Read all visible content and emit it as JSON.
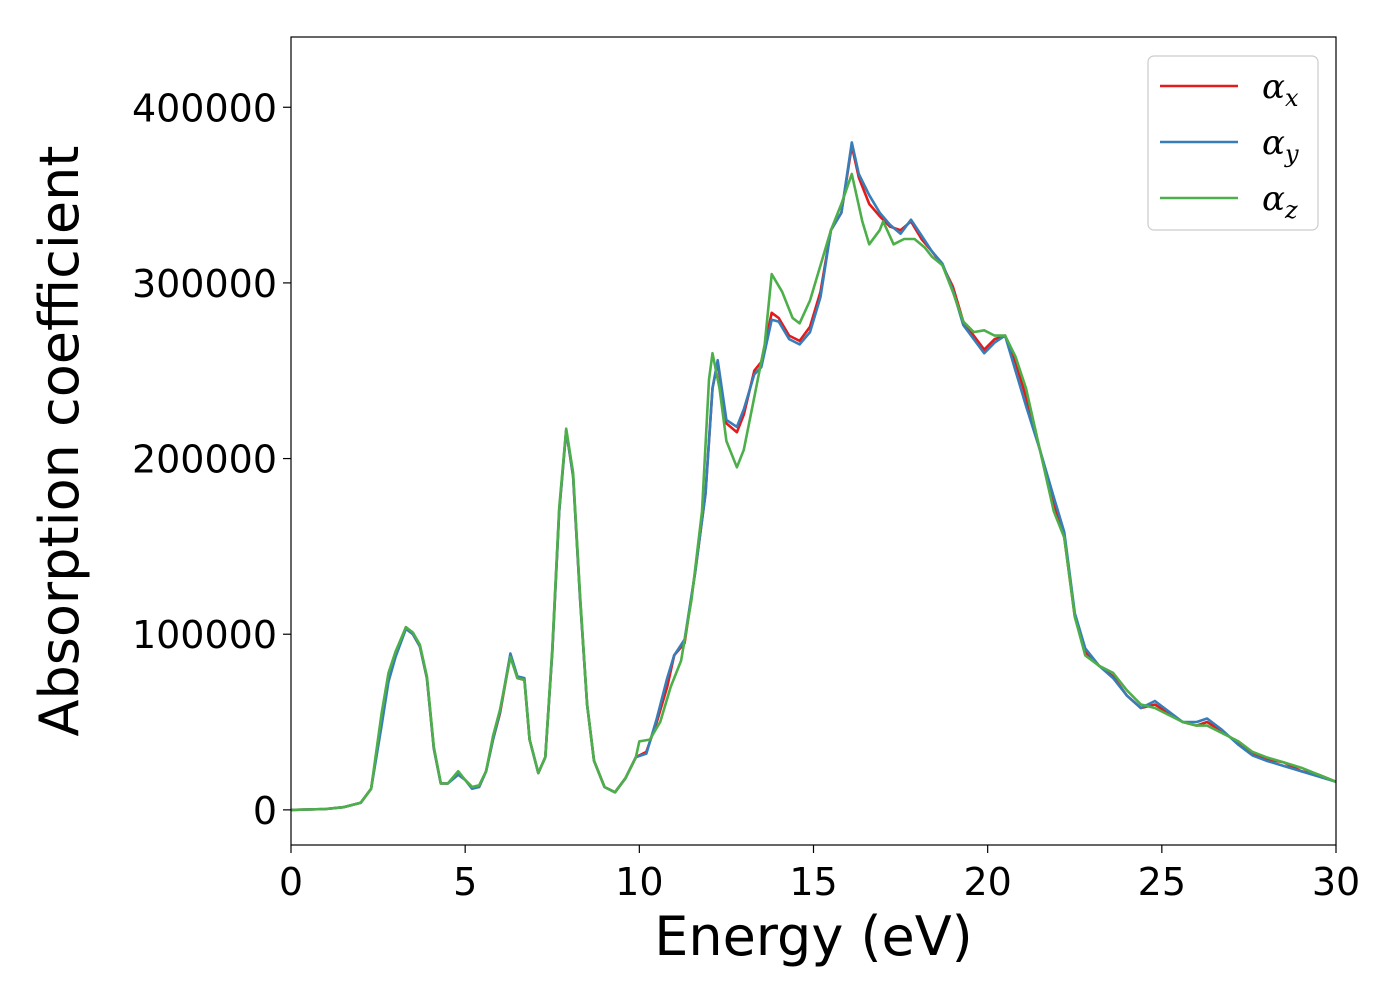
{
  "chart_data": {
    "type": "line",
    "title": "",
    "xlabel": "Energy (eV)",
    "ylabel": "Absorption coefficient",
    "xlim": [
      0,
      30
    ],
    "ylim": [
      -20000,
      440000
    ],
    "x_ticks": [
      0,
      5,
      10,
      15,
      20,
      25,
      30
    ],
    "x_tick_labels": [
      "0",
      "5",
      "10",
      "15",
      "20",
      "25",
      "30"
    ],
    "y_ticks": [
      0,
      100000,
      200000,
      300000,
      400000
    ],
    "y_tick_labels": [
      "0",
      "100000",
      "200000",
      "300000",
      "400000"
    ],
    "grid": false,
    "legend_position": "top-right",
    "series": [
      {
        "name": "α",
        "subscript": "x",
        "color": "#e41a1c",
        "points": [
          [
            0,
            0
          ],
          [
            1,
            500
          ],
          [
            1.5,
            1500
          ],
          [
            2,
            4000
          ],
          [
            2.3,
            12000
          ],
          [
            2.6,
            50000
          ],
          [
            2.8,
            75000
          ],
          [
            3.0,
            88000
          ],
          [
            3.3,
            104000
          ],
          [
            3.5,
            100000
          ],
          [
            3.7,
            93000
          ],
          [
            3.9,
            75000
          ],
          [
            4.1,
            35000
          ],
          [
            4.3,
            15000
          ],
          [
            4.5,
            15000
          ],
          [
            4.8,
            21000
          ],
          [
            5.0,
            17000
          ],
          [
            5.2,
            13000
          ],
          [
            5.4,
            13000
          ],
          [
            5.6,
            22000
          ],
          [
            5.8,
            40000
          ],
          [
            6.0,
            55000
          ],
          [
            6.3,
            88000
          ],
          [
            6.5,
            75000
          ],
          [
            6.7,
            74000
          ],
          [
            6.85,
            40000
          ],
          [
            7.1,
            21000
          ],
          [
            7.3,
            30000
          ],
          [
            7.5,
            90000
          ],
          [
            7.7,
            170000
          ],
          [
            7.9,
            216000
          ],
          [
            8.1,
            190000
          ],
          [
            8.3,
            120000
          ],
          [
            8.5,
            60000
          ],
          [
            8.7,
            28000
          ],
          [
            9.0,
            13000
          ],
          [
            9.3,
            10000
          ],
          [
            9.6,
            18000
          ],
          [
            9.9,
            30000
          ],
          [
            10.2,
            33000
          ],
          [
            10.5,
            50000
          ],
          [
            10.8,
            70000
          ],
          [
            11.0,
            88000
          ],
          [
            11.3,
            95000
          ],
          [
            11.6,
            135000
          ],
          [
            11.9,
            180000
          ],
          [
            12.1,
            240000
          ],
          [
            12.25,
            255000
          ],
          [
            12.5,
            220000
          ],
          [
            12.8,
            215000
          ],
          [
            13.0,
            225000
          ],
          [
            13.3,
            250000
          ],
          [
            13.5,
            255000
          ],
          [
            13.8,
            283000
          ],
          [
            14.0,
            280000
          ],
          [
            14.3,
            270000
          ],
          [
            14.6,
            267000
          ],
          [
            14.9,
            275000
          ],
          [
            15.2,
            295000
          ],
          [
            15.5,
            330000
          ],
          [
            15.8,
            340000
          ],
          [
            16.1,
            378000
          ],
          [
            16.3,
            360000
          ],
          [
            16.6,
            345000
          ],
          [
            16.9,
            338000
          ],
          [
            17.2,
            332000
          ],
          [
            17.5,
            330000
          ],
          [
            17.8,
            335000
          ],
          [
            18.1,
            325000
          ],
          [
            18.4,
            318000
          ],
          [
            18.7,
            310000
          ],
          [
            19.0,
            298000
          ],
          [
            19.3,
            278000
          ],
          [
            19.6,
            270000
          ],
          [
            19.9,
            262000
          ],
          [
            20.2,
            268000
          ],
          [
            20.5,
            270000
          ],
          [
            20.8,
            255000
          ],
          [
            21.1,
            235000
          ],
          [
            21.5,
            205000
          ],
          [
            21.9,
            175000
          ],
          [
            22.2,
            155000
          ],
          [
            22.5,
            110000
          ],
          [
            22.8,
            90000
          ],
          [
            23.2,
            82000
          ],
          [
            23.6,
            76000
          ],
          [
            24.0,
            65000
          ],
          [
            24.4,
            58000
          ],
          [
            24.8,
            60000
          ],
          [
            25.2,
            55000
          ],
          [
            25.6,
            50000
          ],
          [
            26.0,
            48000
          ],
          [
            26.3,
            50000
          ],
          [
            26.7,
            45000
          ],
          [
            27.2,
            38000
          ],
          [
            27.6,
            32000
          ],
          [
            28.0,
            29000
          ],
          [
            28.5,
            27000
          ],
          [
            29.0,
            22000
          ],
          [
            29.5,
            20000
          ],
          [
            30.0,
            16000
          ]
        ]
      },
      {
        "name": "α",
        "subscript": "y",
        "color": "#377eb8",
        "points": [
          [
            0,
            0
          ],
          [
            1,
            500
          ],
          [
            1.5,
            1500
          ],
          [
            2,
            4000
          ],
          [
            2.3,
            12000
          ],
          [
            2.6,
            48000
          ],
          [
            2.8,
            73000
          ],
          [
            3.0,
            87000
          ],
          [
            3.3,
            103000
          ],
          [
            3.5,
            100000
          ],
          [
            3.7,
            93000
          ],
          [
            3.9,
            75000
          ],
          [
            4.1,
            35000
          ],
          [
            4.3,
            15000
          ],
          [
            4.5,
            15000
          ],
          [
            4.8,
            20000
          ],
          [
            5.0,
            17000
          ],
          [
            5.2,
            12000
          ],
          [
            5.4,
            13000
          ],
          [
            5.6,
            22000
          ],
          [
            5.8,
            40000
          ],
          [
            6.0,
            56000
          ],
          [
            6.3,
            89000
          ],
          [
            6.5,
            76000
          ],
          [
            6.7,
            75000
          ],
          [
            6.85,
            40000
          ],
          [
            7.1,
            21000
          ],
          [
            7.3,
            30000
          ],
          [
            7.5,
            90000
          ],
          [
            7.7,
            170000
          ],
          [
            7.9,
            216000
          ],
          [
            8.1,
            190000
          ],
          [
            8.3,
            120000
          ],
          [
            8.5,
            60000
          ],
          [
            8.7,
            28000
          ],
          [
            9.0,
            13000
          ],
          [
            9.3,
            10000
          ],
          [
            9.6,
            18000
          ],
          [
            9.9,
            30000
          ],
          [
            10.2,
            32000
          ],
          [
            10.5,
            52000
          ],
          [
            10.8,
            75000
          ],
          [
            11.0,
            88000
          ],
          [
            11.3,
            97000
          ],
          [
            11.6,
            135000
          ],
          [
            11.9,
            180000
          ],
          [
            12.1,
            240000
          ],
          [
            12.25,
            256000
          ],
          [
            12.5,
            222000
          ],
          [
            12.8,
            218000
          ],
          [
            13.0,
            228000
          ],
          [
            13.3,
            248000
          ],
          [
            13.5,
            252000
          ],
          [
            13.8,
            279000
          ],
          [
            14.0,
            278000
          ],
          [
            14.3,
            268000
          ],
          [
            14.6,
            265000
          ],
          [
            14.9,
            272000
          ],
          [
            15.2,
            292000
          ],
          [
            15.5,
            330000
          ],
          [
            15.8,
            340000
          ],
          [
            16.1,
            380000
          ],
          [
            16.3,
            362000
          ],
          [
            16.6,
            350000
          ],
          [
            16.9,
            340000
          ],
          [
            17.2,
            333000
          ],
          [
            17.5,
            328000
          ],
          [
            17.8,
            336000
          ],
          [
            18.1,
            327000
          ],
          [
            18.4,
            318000
          ],
          [
            18.7,
            311000
          ],
          [
            19.0,
            296000
          ],
          [
            19.3,
            276000
          ],
          [
            19.6,
            268000
          ],
          [
            19.9,
            260000
          ],
          [
            20.2,
            266000
          ],
          [
            20.5,
            270000
          ],
          [
            20.8,
            250000
          ],
          [
            21.1,
            230000
          ],
          [
            21.5,
            205000
          ],
          [
            21.9,
            178000
          ],
          [
            22.2,
            158000
          ],
          [
            22.5,
            112000
          ],
          [
            22.8,
            92000
          ],
          [
            23.2,
            82000
          ],
          [
            23.6,
            75000
          ],
          [
            24.0,
            65000
          ],
          [
            24.4,
            58000
          ],
          [
            24.8,
            62000
          ],
          [
            25.2,
            56000
          ],
          [
            25.6,
            50000
          ],
          [
            26.0,
            50000
          ],
          [
            26.3,
            52000
          ],
          [
            26.7,
            46000
          ],
          [
            27.2,
            37000
          ],
          [
            27.6,
            31000
          ],
          [
            28.0,
            28000
          ],
          [
            28.5,
            25000
          ],
          [
            29.0,
            22000
          ],
          [
            29.5,
            19000
          ],
          [
            30.0,
            16000
          ]
        ]
      },
      {
        "name": "α",
        "subscript": "z",
        "color": "#4daf4a",
        "points": [
          [
            0,
            0
          ],
          [
            1,
            500
          ],
          [
            1.5,
            1500
          ],
          [
            2,
            4000
          ],
          [
            2.3,
            12000
          ],
          [
            2.6,
            55000
          ],
          [
            2.8,
            78000
          ],
          [
            3.0,
            90000
          ],
          [
            3.3,
            104000
          ],
          [
            3.5,
            101000
          ],
          [
            3.7,
            94000
          ],
          [
            3.9,
            76000
          ],
          [
            4.1,
            36000
          ],
          [
            4.3,
            15000
          ],
          [
            4.5,
            15000
          ],
          [
            4.8,
            22000
          ],
          [
            5.0,
            17000
          ],
          [
            5.2,
            13000
          ],
          [
            5.4,
            14000
          ],
          [
            5.6,
            22000
          ],
          [
            5.8,
            42000
          ],
          [
            6.0,
            57000
          ],
          [
            6.3,
            87000
          ],
          [
            6.5,
            75000
          ],
          [
            6.7,
            74000
          ],
          [
            6.85,
            40000
          ],
          [
            7.1,
            21000
          ],
          [
            7.3,
            30000
          ],
          [
            7.5,
            92000
          ],
          [
            7.7,
            172000
          ],
          [
            7.9,
            217000
          ],
          [
            8.1,
            192000
          ],
          [
            8.3,
            122000
          ],
          [
            8.5,
            60000
          ],
          [
            8.7,
            28000
          ],
          [
            9.0,
            13000
          ],
          [
            9.3,
            10000
          ],
          [
            9.6,
            18000
          ],
          [
            9.9,
            30000
          ],
          [
            10.0,
            39000
          ],
          [
            10.3,
            40000
          ],
          [
            10.6,
            50000
          ],
          [
            10.9,
            70000
          ],
          [
            11.2,
            85000
          ],
          [
            11.5,
            120000
          ],
          [
            11.8,
            170000
          ],
          [
            12.0,
            245000
          ],
          [
            12.1,
            260000
          ],
          [
            12.3,
            240000
          ],
          [
            12.5,
            210000
          ],
          [
            12.8,
            195000
          ],
          [
            13.0,
            205000
          ],
          [
            13.3,
            235000
          ],
          [
            13.6,
            265000
          ],
          [
            13.8,
            305000
          ],
          [
            14.1,
            295000
          ],
          [
            14.4,
            280000
          ],
          [
            14.6,
            277000
          ],
          [
            14.9,
            290000
          ],
          [
            15.2,
            310000
          ],
          [
            15.5,
            330000
          ],
          [
            15.8,
            345000
          ],
          [
            16.1,
            362000
          ],
          [
            16.4,
            335000
          ],
          [
            16.6,
            322000
          ],
          [
            16.9,
            330000
          ],
          [
            17.0,
            335000
          ],
          [
            17.3,
            322000
          ],
          [
            17.6,
            325000
          ],
          [
            17.9,
            325000
          ],
          [
            18.2,
            320000
          ],
          [
            18.4,
            315000
          ],
          [
            18.7,
            310000
          ],
          [
            19.0,
            295000
          ],
          [
            19.3,
            278000
          ],
          [
            19.6,
            272000
          ],
          [
            19.9,
            273000
          ],
          [
            20.2,
            270000
          ],
          [
            20.5,
            270000
          ],
          [
            20.8,
            258000
          ],
          [
            21.1,
            240000
          ],
          [
            21.5,
            205000
          ],
          [
            21.9,
            170000
          ],
          [
            22.2,
            155000
          ],
          [
            22.5,
            110000
          ],
          [
            22.8,
            88000
          ],
          [
            23.2,
            82000
          ],
          [
            23.6,
            78000
          ],
          [
            24.0,
            68000
          ],
          [
            24.4,
            60000
          ],
          [
            24.8,
            58000
          ],
          [
            25.2,
            54000
          ],
          [
            25.6,
            50000
          ],
          [
            26.0,
            48000
          ],
          [
            26.3,
            48000
          ],
          [
            26.7,
            44000
          ],
          [
            27.2,
            39000
          ],
          [
            27.6,
            33000
          ],
          [
            28.0,
            30000
          ],
          [
            28.5,
            27000
          ],
          [
            29.0,
            24000
          ],
          [
            29.5,
            20000
          ],
          [
            30.0,
            16000
          ]
        ]
      }
    ]
  }
}
